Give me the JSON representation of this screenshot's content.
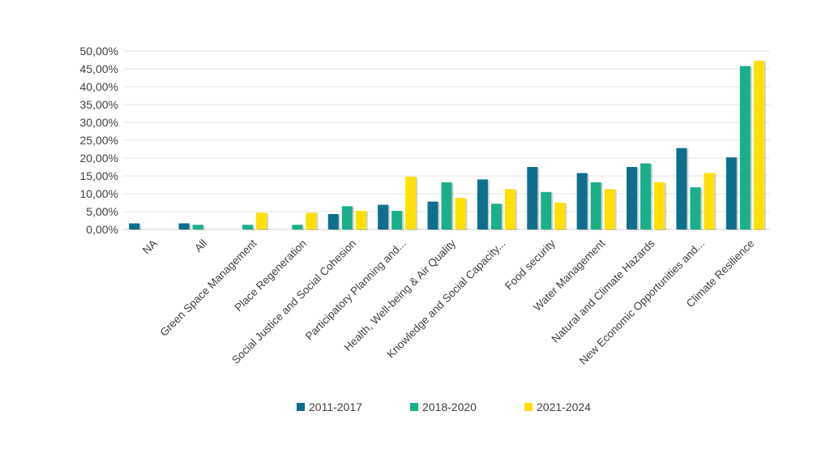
{
  "chart_data": {
    "type": "bar",
    "title": "",
    "xlabel": "",
    "ylabel": "",
    "ylim": [
      0,
      50
    ],
    "y_tick_values": [
      0,
      5,
      10,
      15,
      20,
      25,
      30,
      35,
      40,
      45,
      50
    ],
    "y_tick_labels": [
      "0,00%",
      "5,00%",
      "10,00%",
      "15,00%",
      "20,00%",
      "25,00%",
      "30,00%",
      "35,00%",
      "40,00%",
      "45,00%",
      "50,00%"
    ],
    "grid": true,
    "legend_position": "bottom",
    "categories": [
      "NA",
      "All",
      "Green Space Management",
      "Place Regeneration",
      "Social Justice and Social Cohesion",
      "Participatory Planning and...",
      "Health, Well-being & Air Quality",
      "Knowledge and Social Capacity...",
      "Food security",
      "Water Management",
      "Natural and Climate Hazards",
      "New Economic Opportunities and...",
      "Climate Resilience"
    ],
    "series": [
      {
        "name": "2011-2017",
        "color": "#0f6e8c",
        "values": [
          1.7,
          1.7,
          0,
          0,
          4.3,
          6.9,
          7.8,
          14.0,
          17.5,
          15.8,
          17.5,
          22.8,
          20.2
        ]
      },
      {
        "name": "2018-2020",
        "color": "#1aaf8b",
        "values": [
          0,
          1.3,
          1.3,
          1.3,
          6.5,
          5.2,
          13.2,
          7.2,
          10.5,
          13.2,
          18.5,
          11.8,
          45.8
        ]
      },
      {
        "name": "2021-2024",
        "color": "#ffe000",
        "values": [
          0,
          0,
          4.7,
          4.7,
          5.2,
          14.8,
          8.8,
          11.3,
          7.5,
          11.3,
          13.2,
          15.8,
          47.3
        ]
      }
    ]
  }
}
